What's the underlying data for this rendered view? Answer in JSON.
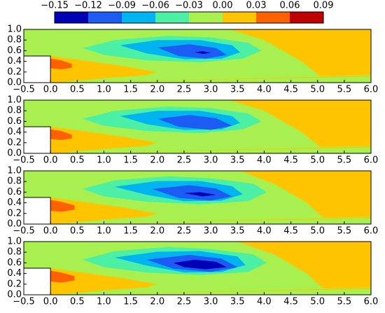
{
  "chart_data": {
    "type": "contour",
    "levels": [
      {
        "value": -0.15,
        "label": "−0.15"
      },
      {
        "value": -0.12,
        "label": "−0.12"
      },
      {
        "value": -0.09,
        "label": "−0.09"
      },
      {
        "value": -0.06,
        "label": "−0.06"
      },
      {
        "value": -0.03,
        "label": "−0.03"
      },
      {
        "value": 0,
        "label": "0.00"
      },
      0.03,
      0.06,
      0.09
    ],
    "colors": [
      "#0000b4",
      "#1c5cf4",
      "#00b4f0",
      "#4cf0a4",
      "#a8f050",
      "#ffc400",
      "#ff6000",
      "#c00000"
    ],
    "xlim": [
      -0.5,
      6
    ],
    "ylim": [
      0,
      1
    ],
    "xticks": [
      {
        "value": -0.5,
        "label": "−0.5"
      },
      {
        "value": 0,
        "label": "0.0"
      },
      0.5,
      {
        "value": 1,
        "label": "1.0"
      },
      1.5,
      {
        "value": 2,
        "label": "2.0"
      },
      2.5,
      {
        "value": 3,
        "label": "3.0"
      },
      3.5,
      {
        "value": 4,
        "label": "4.0"
      },
      4.5,
      {
        "value": 5,
        "label": "5.0"
      },
      5.5,
      {
        "value": 6,
        "label": "6.0"
      }
    ],
    "yticks": [
      {
        "value": 0,
        "label": "0.0"
      },
      0.2,
      0.4,
      0.6,
      0.8,
      {
        "value": 1,
        "label": "1.0"
      }
    ],
    "panels": [
      {
        "regions": [
          {
            "level": -0.03,
            "x": [
              -0.5,
              6,
              6,
              -0.5
            ],
            "y": [
              0,
              0,
              1,
              1
            ]
          },
          {
            "level": 0,
            "x": [
              3.35,
              6,
              6,
              5.05,
              4.7,
              4.0
            ],
            "y": [
              1,
              1,
              0.15,
              0.12,
              0.4,
              0.8
            ]
          },
          {
            "level": 0,
            "x": [
              0,
              0.6,
              1.3,
              2.0,
              1.8,
              1.0,
              0.3,
              0
            ],
            "y": [
              0.5,
              0.42,
              0.32,
              0.2,
              0.14,
              0.08,
              0.02,
              0
            ]
          },
          {
            "level": 0,
            "x": [
              0,
              6,
              6,
              2
            ],
            "y": [
              0,
              0.13,
              0.11,
              0.04
            ]
          },
          {
            "level": 0.03,
            "x": [
              0,
              0.2,
              0.4,
              0.4,
              0.2,
              0
            ],
            "y": [
              0.45,
              0.42,
              0.35,
              0.28,
              0.25,
              0.27
            ]
          },
          {
            "level": -0.06,
            "x": [
              0.6,
              1.2,
              2.2,
              3.0,
              3.7,
              3.95,
              3.6,
              2.8,
              1.8,
              1.0
            ],
            "y": [
              0.65,
              0.8,
              0.88,
              0.85,
              0.75,
              0.6,
              0.45,
              0.38,
              0.42,
              0.52
            ]
          },
          {
            "level": -0.09,
            "x": [
              1.3,
              2.0,
              2.8,
              3.4,
              3.55,
              3.2,
              2.5,
              1.8
            ],
            "y": [
              0.7,
              0.8,
              0.8,
              0.7,
              0.57,
              0.45,
              0.44,
              0.55
            ]
          },
          {
            "level": -0.12,
            "x": [
              2.0,
              2.6,
              3.1,
              3.3,
              2.9,
              2.4
            ],
            "y": [
              0.66,
              0.72,
              0.65,
              0.52,
              0.45,
              0.5
            ]
          },
          {
            "level": -0.15,
            "x": [
              2.7,
              2.85,
              3.0,
              2.85
            ],
            "y": [
              0.57,
              0.59,
              0.56,
              0.54
            ]
          }
        ]
      },
      {
        "regions": [
          {
            "level": -0.03,
            "x": [
              -0.5,
              6,
              6,
              -0.5
            ],
            "y": [
              0,
              0,
              1,
              1
            ]
          },
          {
            "level": 0,
            "x": [
              3.35,
              6,
              6,
              5.05,
              4.7,
              4.0
            ],
            "y": [
              1,
              1,
              0.14,
              0.12,
              0.4,
              0.8
            ]
          },
          {
            "level": 0,
            "x": [
              0,
              0.6,
              1.3,
              2.0,
              1.8,
              1.0,
              0.3,
              0
            ],
            "y": [
              0.5,
              0.42,
              0.32,
              0.2,
              0.14,
              0.08,
              0.02,
              0
            ]
          },
          {
            "level": 0,
            "x": [
              0,
              6,
              6,
              2
            ],
            "y": [
              0,
              0.13,
              0.11,
              0.04
            ]
          },
          {
            "level": 0.03,
            "x": [
              0,
              0.2,
              0.4,
              0.4,
              0.2,
              0
            ],
            "y": [
              0.45,
              0.42,
              0.35,
              0.28,
              0.25,
              0.27
            ]
          },
          {
            "level": -0.06,
            "x": [
              0.6,
              1.2,
              2.2,
              3.0,
              3.7,
              3.95,
              3.6,
              2.8,
              1.8,
              1.0
            ],
            "y": [
              0.65,
              0.8,
              0.88,
              0.85,
              0.75,
              0.6,
              0.45,
              0.38,
              0.42,
              0.52
            ]
          },
          {
            "level": -0.09,
            "x": [
              1.3,
              2.0,
              2.8,
              3.4,
              3.55,
              3.2,
              2.5,
              1.8
            ],
            "y": [
              0.7,
              0.8,
              0.8,
              0.7,
              0.57,
              0.45,
              0.44,
              0.55
            ]
          },
          {
            "level": -0.12,
            "x": [
              2.0,
              2.6,
              3.1,
              3.4,
              3.0,
              2.4
            ],
            "y": [
              0.65,
              0.72,
              0.66,
              0.52,
              0.44,
              0.5
            ]
          }
        ]
      },
      {
        "regions": [
          {
            "level": -0.03,
            "x": [
              -0.5,
              6,
              6,
              -0.5
            ],
            "y": [
              0,
              0,
              1,
              1
            ]
          },
          {
            "level": 0,
            "x": [
              3.55,
              6,
              6,
              5.1,
              4.8,
              4.2
            ],
            "y": [
              1,
              1,
              0.14,
              0.12,
              0.4,
              0.75
            ]
          },
          {
            "level": 0,
            "x": [
              0,
              0.6,
              1.3,
              2.0,
              1.8,
              1.0,
              0.3,
              0
            ],
            "y": [
              0.5,
              0.42,
              0.32,
              0.2,
              0.14,
              0.08,
              0.02,
              0
            ]
          },
          {
            "level": 0,
            "x": [
              0,
              6,
              6,
              2
            ],
            "y": [
              0,
              0.13,
              0.11,
              0.04
            ]
          },
          {
            "level": 0.03,
            "x": [
              0,
              0.2,
              0.45,
              0.45,
              0.2,
              0
            ],
            "y": [
              0.45,
              0.42,
              0.35,
              0.27,
              0.23,
              0.25
            ]
          },
          {
            "level": -0.06,
            "x": [
              0.6,
              1.2,
              2.2,
              3.0,
              3.8,
              4.05,
              3.7,
              2.8,
              1.8,
              1.0
            ],
            "y": [
              0.66,
              0.82,
              0.9,
              0.86,
              0.76,
              0.6,
              0.43,
              0.37,
              0.42,
              0.52
            ]
          },
          {
            "level": -0.09,
            "x": [
              1.2,
              2.0,
              2.8,
              3.4,
              3.6,
              3.2,
              2.5,
              1.8
            ],
            "y": [
              0.7,
              0.81,
              0.81,
              0.71,
              0.56,
              0.44,
              0.43,
              0.55
            ]
          },
          {
            "level": -0.12,
            "x": [
              1.9,
              2.6,
              3.1,
              3.4,
              3.0,
              2.4
            ],
            "y": [
              0.66,
              0.73,
              0.67,
              0.52,
              0.44,
              0.49
            ]
          },
          {
            "level": -0.15,
            "x": [
              2.5,
              2.8,
              3.1,
              2.85
            ],
            "y": [
              0.58,
              0.6,
              0.55,
              0.52
            ]
          }
        ]
      },
      {
        "regions": [
          {
            "level": -0.03,
            "x": [
              -0.5,
              6,
              6,
              -0.5
            ],
            "y": [
              0,
              0,
              1,
              1
            ]
          },
          {
            "level": 0,
            "x": [
              3.5,
              6,
              6,
              5.1,
              4.8,
              4.2
            ],
            "y": [
              1,
              1,
              0.14,
              0.12,
              0.4,
              0.75
            ]
          },
          {
            "level": 0,
            "x": [
              0,
              0.6,
              1.3,
              2.0,
              1.8,
              1.0,
              0.3,
              0
            ],
            "y": [
              0.5,
              0.42,
              0.32,
              0.2,
              0.14,
              0.08,
              0.02,
              0
            ]
          },
          {
            "level": 0,
            "x": [
              0,
              6,
              6,
              2
            ],
            "y": [
              0,
              0.13,
              0.11,
              0.04
            ]
          },
          {
            "level": 0.03,
            "x": [
              0,
              0.2,
              0.45,
              0.45,
              0.2,
              0
            ],
            "y": [
              0.45,
              0.42,
              0.35,
              0.27,
              0.23,
              0.25
            ]
          },
          {
            "level": -0.06,
            "x": [
              0.6,
              1.2,
              2.2,
              3.0,
              3.8,
              4.05,
              3.7,
              2.8,
              1.8,
              1.0
            ],
            "y": [
              0.66,
              0.82,
              0.9,
              0.86,
              0.76,
              0.6,
              0.43,
              0.37,
              0.42,
              0.52
            ]
          },
          {
            "level": -0.09,
            "x": [
              1.2,
              2.0,
              2.8,
              3.5,
              3.65,
              3.2,
              2.5,
              1.8
            ],
            "y": [
              0.7,
              0.81,
              0.82,
              0.72,
              0.56,
              0.43,
              0.42,
              0.55
            ]
          },
          {
            "level": -0.12,
            "x": [
              1.8,
              2.6,
              3.2,
              3.5,
              3.0,
              2.3
            ],
            "y": [
              0.66,
              0.75,
              0.68,
              0.52,
              0.43,
              0.49
            ]
          },
          {
            "level": -0.15,
            "x": [
              2.3,
              2.7,
              3.1,
              3.3,
              2.9,
              2.5
            ],
            "y": [
              0.6,
              0.66,
              0.62,
              0.52,
              0.48,
              0.52
            ]
          }
        ]
      }
    ]
  }
}
